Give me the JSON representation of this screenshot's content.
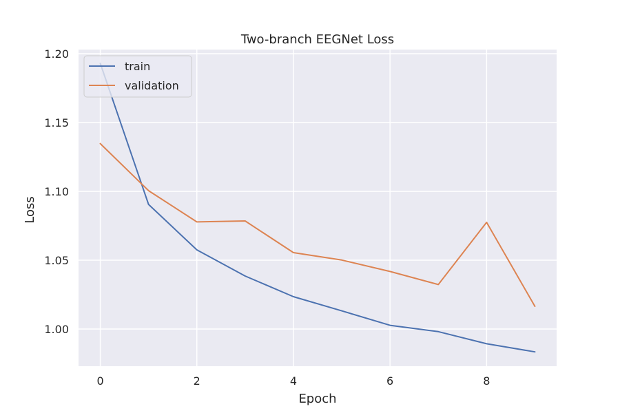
{
  "chart_data": {
    "type": "line",
    "title": "Two-branch EEGNet Loss",
    "xlabel": "Epoch",
    "ylabel": "Loss",
    "x": [
      0,
      1,
      2,
      3,
      4,
      5,
      6,
      7,
      8,
      9
    ],
    "xlim": [
      -0.45,
      9.45
    ],
    "ylim": [
      0.973,
      1.203
    ],
    "x_ticks": [
      0,
      2,
      4,
      6,
      8
    ],
    "y_ticks": [
      1.0,
      1.05,
      1.1,
      1.15,
      1.2
    ],
    "x_tick_labels": [
      "0",
      "2",
      "4",
      "6",
      "8"
    ],
    "y_tick_labels": [
      "1.00",
      "1.05",
      "1.10",
      "1.15",
      "1.20"
    ],
    "grid": true,
    "legend_position": "top-left",
    "series": [
      {
        "name": "train",
        "color": "#4c72b0",
        "values": [
          1.193,
          1.0905,
          1.0575,
          1.0385,
          1.0235,
          1.0132,
          1.0027,
          0.9981,
          0.9893,
          0.9834
        ]
      },
      {
        "name": "validation",
        "color": "#dd8452",
        "values": [
          1.1347,
          1.1005,
          1.0778,
          1.0785,
          1.0555,
          1.0501,
          1.0418,
          1.0323,
          1.0775,
          1.0165
        ]
      }
    ]
  }
}
